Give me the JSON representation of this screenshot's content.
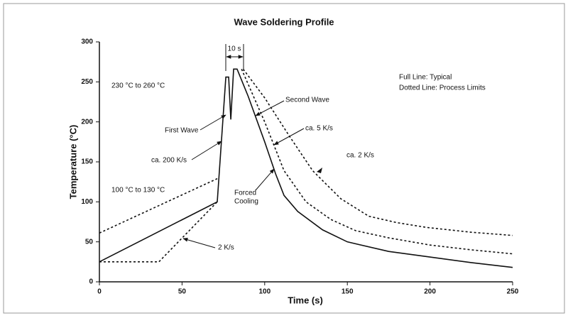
{
  "chart_data": {
    "type": "line",
    "title": "Wave Soldering Profile",
    "xlabel": "Time (s)",
    "ylabel": "Temperature (°C)",
    "xlim": [
      0,
      250
    ],
    "xticks": [
      0,
      50,
      100,
      150,
      200,
      250
    ],
    "ylim": [
      0,
      300
    ],
    "yticks": [
      0,
      50,
      100,
      150,
      200,
      250,
      300
    ],
    "series": [
      {
        "color": "#111111",
        "style": "solid",
        "x": [
          0,
          71.3,
          76.5,
          78.2,
          79.5,
          81.2,
          83.3,
          90,
          100,
          106.6,
          111.7,
          120,
          135,
          150,
          175,
          200,
          225,
          250
        ],
        "values": [
          25,
          100,
          256,
          256,
          203,
          266,
          266,
          232,
          175,
          135,
          108,
          88,
          65,
          50,
          38,
          31,
          24,
          18
        ]
      },
      {
        "color": "#111111",
        "style": "dotted",
        "x": [
          0,
          71.3,
          80,
          87,
          100,
          115,
          129,
          146,
          163,
          180,
          198,
          225,
          250
        ],
        "values": [
          61,
          129,
          null,
          266,
          230,
          182,
          139,
          104,
          82,
          74,
          68,
          62,
          58
        ]
      },
      {
        "color": "#111111",
        "style": "dotted",
        "x": [
          0,
          36,
          71.3,
          80,
          86,
          100,
          111.7,
          125,
          140,
          155,
          175,
          200,
          225,
          250
        ],
        "values": [
          25,
          25,
          100,
          null,
          266,
          200,
          139,
          100,
          78,
          64,
          55,
          46,
          40,
          35
        ]
      }
    ],
    "annotations": [
      "10 s",
      "230 °C to 260 °C",
      "First Wave",
      "ca. 200 K/s",
      "100 °C to 130 °C",
      "2 K/s",
      "Second Wave",
      "ca. 5 K/s",
      "ca. 2 K/s",
      "Forced",
      "Cooling",
      "Full Line: Typical",
      "Dotted Line: Process Limits"
    ]
  }
}
